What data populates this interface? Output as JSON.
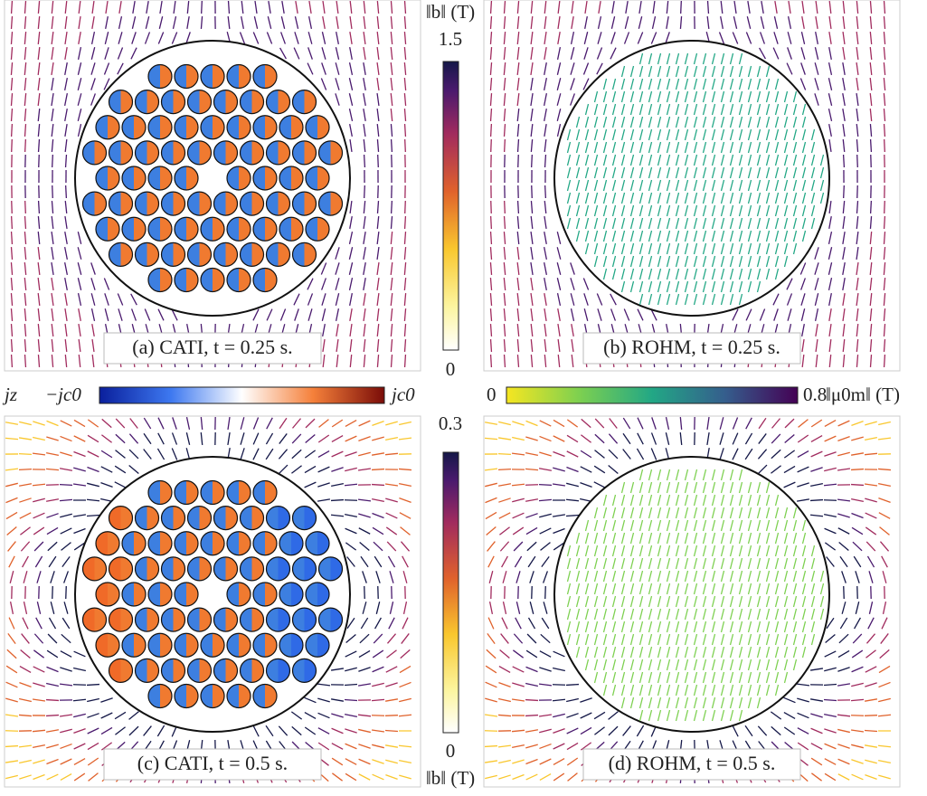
{
  "panels": [
    {
      "caption": "(a) CATI, t = 0.25 s."
    },
    {
      "caption": "(b) ROHM, t = 0.25 s."
    },
    {
      "caption": "(c) CATI, t = 0.5 s."
    },
    {
      "caption": "(d) ROHM, t = 0.5 s."
    }
  ],
  "colorbars": {
    "field_top": {
      "label": "‖b‖ (T)",
      "max": 1.5,
      "min": 0
    },
    "field_bottom": {
      "label": "‖b‖ (T)",
      "max": 0.3,
      "min": 0
    },
    "current": {
      "label": "jz",
      "min": "−jc0",
      "max": "jc0"
    },
    "magnetization": {
      "label": "‖μ0m‖ (T)",
      "min": 0,
      "max": 0.8
    }
  }
}
